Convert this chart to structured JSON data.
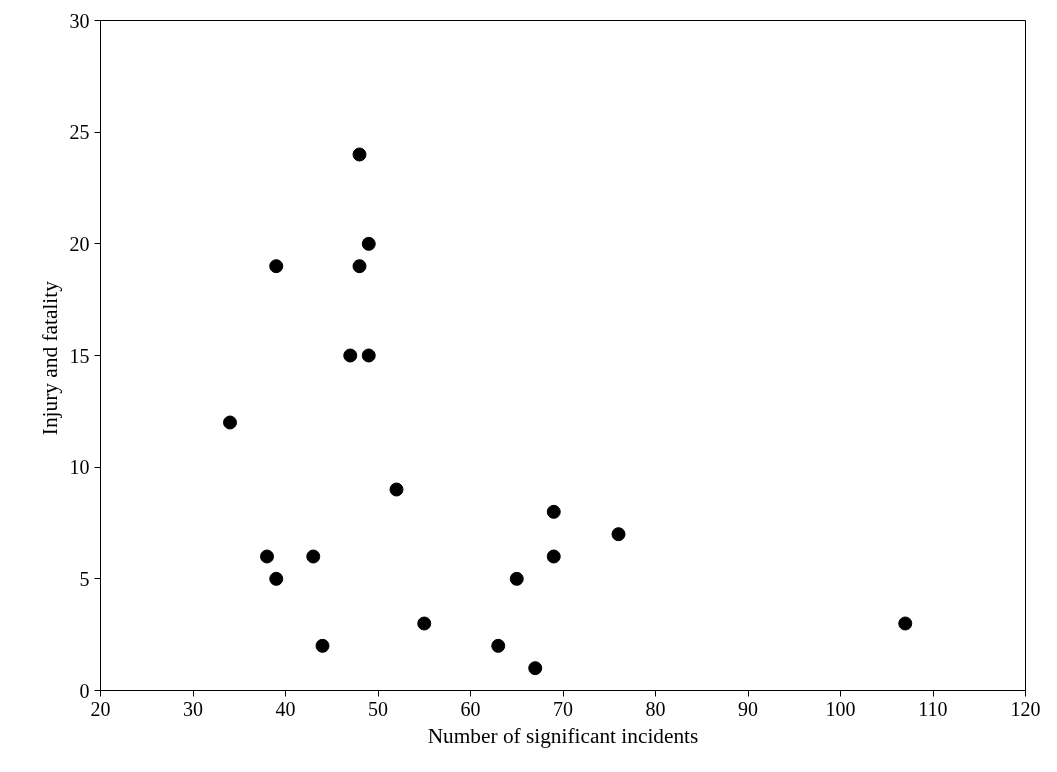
{
  "chart_data": {
    "type": "scatter",
    "xlabel": "Number of significant incidents",
    "ylabel": "Injury and  fatality",
    "x": [
      34,
      38,
      39,
      39,
      43,
      44,
      47,
      48,
      48,
      49,
      49,
      52,
      55,
      63,
      65,
      67,
      69,
      69,
      76,
      107
    ],
    "series": [
      {
        "color": "#000000",
        "values": [
          12,
          6,
          5,
          19,
          6,
          2,
          15,
          24,
          19,
          20,
          15,
          9,
          3,
          2,
          5,
          1,
          8,
          6,
          7,
          3
        ]
      }
    ],
    "xlim": [
      20,
      120
    ],
    "xticks": [
      20,
      30,
      40,
      50,
      60,
      70,
      80,
      90,
      100,
      110,
      120
    ],
    "ylim": [
      0,
      30
    ],
    "yticks": [
      0,
      5,
      10,
      15,
      20,
      25,
      30
    ],
    "grid": false,
    "marker": "circle"
  }
}
